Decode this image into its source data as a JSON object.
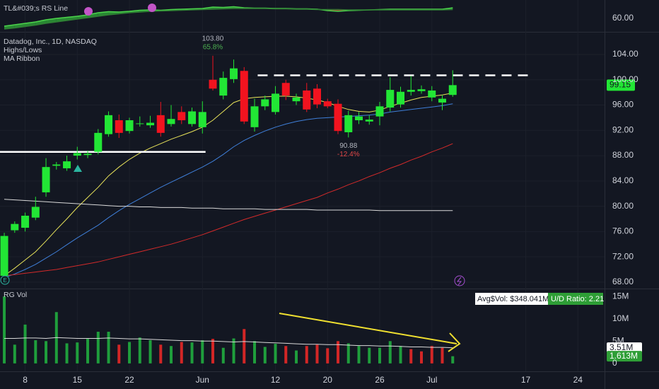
{
  "chart_data": [
    {
      "type": "area",
      "title": "TL&#039;s RS Line",
      "series": [
        {
          "color": "#4cd44c",
          "values": [
            57.8,
            58.2,
            58.6,
            59.0,
            59.6,
            60.0,
            60.3,
            60.6,
            61.0,
            61.6,
            61.9,
            61.8,
            62.0,
            62.3,
            62.4,
            62.3,
            62.5,
            62.6,
            62.7,
            62.8,
            63.2,
            63.1,
            63.3,
            63.0,
            62.9,
            62.9,
            62.8,
            62.8,
            62.7,
            62.7,
            62.6,
            62.2,
            62.0,
            62.2,
            62.3,
            62.4,
            62.5,
            62.6,
            62.6,
            62.6,
            62.6,
            62.6,
            62.6,
            63.0
          ]
        },
        {
          "color": "#2f7d34",
          "values": [
            57.0,
            57.3,
            57.7,
            58.1,
            58.6,
            59.0,
            59.4,
            59.8,
            60.2,
            60.6,
            61.0,
            61.3,
            61.6,
            61.8,
            62.0,
            62.1,
            62.2,
            62.3,
            62.4,
            62.5,
            62.6,
            62.7,
            62.8,
            62.8,
            62.8,
            62.8,
            62.7,
            62.7,
            62.6,
            62.6,
            62.5,
            62.5,
            62.5,
            62.4,
            62.4,
            62.4,
            62.4,
            62.4,
            62.4,
            62.4,
            62.4,
            62.4,
            62.4,
            62.5
          ]
        }
      ],
      "fill_up_color": "#2e9e36",
      "fill_down_color": "#d42a2a",
      "ylim": [
        56.2,
        65.2
      ],
      "yticks": [
        {
          "value": 60,
          "label": "60.00"
        }
      ]
    },
    {
      "type": "candlestick",
      "title": "Datadog, Inc., 1D, NASDAQ",
      "indicators": [
        "Highs/Lows",
        "MA Ribbon"
      ],
      "open": [
        69.0,
        76.2,
        76.6,
        78.2,
        82.2,
        86.4,
        86.0,
        88.0,
        88.1,
        88.6,
        91.4,
        93.6,
        91.9,
        93.0,
        92.8,
        94.4,
        93.0,
        94.9,
        93.0,
        92.5,
        100.0,
        97.5,
        100.1,
        101.4,
        92.5,
        95.8,
        94.9,
        99.5,
        96.6,
        98.3,
        98.6,
        96.6,
        96.2,
        91.7,
        93.6,
        93.4,
        94.2,
        95.6,
        96.1,
        98.1,
        98.2,
        97.2,
        96.4,
        97.6
      ],
      "high": [
        75.8,
        77.6,
        79.0,
        81.5,
        87.6,
        87.0,
        88.0,
        89.4,
        88.8,
        92.2,
        95.0,
        94.5,
        94.0,
        94.2,
        94.3,
        96.5,
        96.0,
        95.8,
        95.6,
        96.6,
        103.8,
        101.3,
        103.2,
        102.0,
        97.0,
        97.5,
        99.0,
        100.0,
        97.8,
        99.5,
        99.3,
        97.0,
        96.9,
        95.1,
        94.9,
        94.4,
        96.5,
        100.4,
        98.9,
        100.6,
        99.1,
        99.0,
        97.6,
        101.5
      ],
      "low": [
        68.6,
        75.8,
        76.0,
        77.8,
        81.5,
        85.8,
        85.6,
        87.4,
        87.6,
        88.2,
        91.0,
        90.8,
        91.5,
        92.6,
        92.4,
        91.0,
        92.6,
        93.0,
        92.6,
        91.5,
        98.3,
        96.9,
        99.5,
        93.0,
        91.8,
        95.2,
        94.5,
        96.8,
        96.0,
        94.9,
        95.5,
        95.5,
        91.4,
        90.88,
        93.0,
        92.9,
        92.8,
        95.0,
        95.6,
        97.5,
        97.8,
        96.6,
        95.2,
        97.3
      ],
      "close": [
        75.3,
        77.2,
        78.5,
        79.9,
        86.2,
        86.6,
        87.1,
        88.4,
        88.3,
        91.6,
        94.4,
        91.6,
        93.6,
        93.1,
        93.2,
        91.6,
        93.8,
        93.6,
        95.0,
        94.9,
        98.6,
        100.3,
        101.8,
        93.4,
        95.8,
        96.9,
        97.8,
        97.5,
        97.2,
        95.3,
        96.1,
        95.8,
        91.9,
        94.4,
        94.2,
        93.7,
        95.8,
        98.4,
        98.1,
        98.4,
        98.5,
        98.3,
        97.0,
        99.15
      ],
      "up_color": "#22e635",
      "down_color": "#f2131f",
      "ma_ribbon": [
        {
          "color": "#e8e35a",
          "values": [
            69.0,
            70.2,
            71.5,
            72.8,
            74.5,
            76.3,
            78.0,
            79.8,
            81.4,
            83.0,
            84.8,
            86.2,
            87.4,
            88.4,
            89.2,
            89.9,
            90.6,
            91.2,
            91.8,
            92.5,
            93.6,
            95.0,
            96.4,
            97.0,
            97.2,
            97.3,
            97.4,
            97.4,
            97.3,
            97.1,
            96.8,
            96.4,
            95.8,
            95.3,
            95.0,
            94.9,
            95.2,
            95.8,
            96.3,
            96.8,
            97.2,
            97.4,
            97.6,
            97.9
          ]
        },
        {
          "color": "#3f7fd9",
          "values": [
            68.7,
            69.3,
            70.0,
            70.8,
            71.8,
            72.8,
            73.9,
            75.0,
            76.0,
            77.0,
            78.2,
            79.3,
            80.3,
            81.2,
            82.1,
            83.0,
            83.8,
            84.6,
            85.4,
            86.2,
            87.1,
            88.2,
            89.4,
            90.4,
            91.2,
            91.9,
            92.5,
            93.0,
            93.4,
            93.7,
            93.9,
            94.0,
            94.1,
            94.2,
            94.3,
            94.4,
            94.6,
            94.9,
            95.1,
            95.3,
            95.5,
            95.7,
            95.9,
            96.2
          ]
        },
        {
          "color": "#d32a2a",
          "values": [
            69.0,
            69.2,
            69.4,
            69.6,
            69.8,
            70.0,
            70.3,
            70.6,
            70.9,
            71.2,
            71.6,
            72.0,
            72.4,
            72.8,
            73.2,
            73.6,
            74.0,
            74.5,
            75.0,
            75.5,
            76.1,
            76.7,
            77.3,
            77.9,
            78.4,
            78.9,
            79.4,
            79.9,
            80.4,
            80.9,
            81.4,
            82.1,
            82.7,
            83.4,
            84.0,
            84.7,
            85.3,
            86.0,
            86.6,
            87.3,
            87.9,
            88.6,
            89.2,
            89.9
          ]
        },
        {
          "color": "#d9d9d9",
          "values": [
            81.1,
            81.0,
            80.9,
            80.8,
            80.7,
            80.6,
            80.5,
            80.4,
            80.3,
            80.2,
            80.1,
            80.0,
            80.0,
            79.9,
            79.9,
            79.8,
            79.8,
            79.8,
            79.7,
            79.7,
            79.7,
            79.6,
            79.6,
            79.6,
            79.6,
            79.5,
            79.5,
            79.5,
            79.5,
            79.5,
            79.4,
            79.4,
            79.4,
            79.4,
            79.4,
            79.4,
            79.3,
            79.3,
            79.3,
            79.3,
            79.3,
            79.3,
            79.3,
            79.3
          ]
        }
      ],
      "annotations": [
        {
          "at": "high",
          "value": 103.8,
          "label": "103.80",
          "change": {
            "value": 65.8,
            "label": "65.8%"
          },
          "color": "#4caf50"
        },
        {
          "at": "low",
          "value": 90.88,
          "label": "90.88",
          "change": {
            "value": -12.4,
            "label": "-12.4%"
          },
          "color": "#e04848"
        }
      ],
      "levels": [
        {
          "value": 100.7,
          "from": 24.3,
          "to": 50.8,
          "style": "dashed",
          "color": "#ffffff"
        },
        {
          "value": 88.6,
          "from": -0.41,
          "to": 19.3,
          "style": "solid",
          "color": "#ffffff"
        }
      ],
      "last_price": 99.15,
      "last_price_color": "#22e635",
      "ylim": [
        66.98,
        107.58
      ],
      "yticks": [
        {
          "value": 104,
          "label": "104.00"
        },
        {
          "value": 100,
          "label": "100.00"
        },
        {
          "value": 96,
          "label": "96.00"
        },
        {
          "value": 92,
          "label": "92.00"
        },
        {
          "value": 88,
          "label": "88.00"
        },
        {
          "value": 84,
          "label": "84.00"
        },
        {
          "value": 80,
          "label": "80.00"
        },
        {
          "value": 76,
          "label": "76.00"
        },
        {
          "value": 72,
          "label": "72.00"
        },
        {
          "value": 68,
          "label": "68.00"
        }
      ],
      "grid": true
    },
    {
      "type": "bar",
      "title": "RG Vol",
      "x": [
        0,
        1,
        2,
        3,
        4,
        5,
        6,
        7,
        8,
        9,
        10,
        11,
        12,
        13,
        14,
        15,
        16,
        17,
        18,
        19,
        20,
        21,
        22,
        23,
        24,
        25,
        26,
        27,
        28,
        29,
        30,
        31,
        32,
        33,
        34,
        35,
        36,
        37,
        38,
        39,
        40,
        41,
        42,
        43
      ],
      "xlim": [
        -0.41,
        57.56
      ],
      "xticks": [
        {
          "value": 2,
          "label": "8"
        },
        {
          "value": 7,
          "label": "15"
        },
        {
          "value": 12,
          "label": "22"
        },
        {
          "value": 19,
          "label": "Jun"
        },
        {
          "value": 26,
          "label": "12"
        },
        {
          "value": 31,
          "label": "20"
        },
        {
          "value": 36,
          "label": "26"
        },
        {
          "value": 41,
          "label": "Jul"
        },
        {
          "value": 50,
          "label": "17"
        },
        {
          "value": 55,
          "label": "24"
        }
      ],
      "values": [
        15.0,
        4.2,
        8.7,
        5.2,
        5.0,
        11.5,
        4.5,
        4.7,
        5.5,
        7.1,
        7.1,
        4.2,
        4.8,
        5.8,
        5.2,
        4.2,
        3.9,
        4.8,
        4.7,
        5.2,
        5.5,
        3.5,
        5.6,
        7.7,
        5.0,
        3.7,
        4.4,
        3.9,
        2.9,
        3.9,
        4.2,
        3.4,
        5.0,
        4.5,
        3.9,
        3.5,
        3.5,
        5.0,
        3.9,
        3.2,
        2.7,
        3.9,
        3.5,
        1.613
      ],
      "colors": [
        "#1f9e3c",
        "#1f9e3c",
        "#1f9e3c",
        "#1f9e3c",
        "#1f9e3c",
        "#1f9e3c",
        "#1f9e3c",
        "#1f9e3c",
        "#1f9e3c",
        "#1f9e3c",
        "#1f9e3c",
        "#d32626",
        "#1f9e3c",
        "#1f9e3c",
        "#1f9e3c",
        "#d32626",
        "#1f9e3c",
        "#d32626",
        "#1f9e3c",
        "#1f9e3c",
        "#d32626",
        "#1f9e3c",
        "#1f9e3c",
        "#d32626",
        "#1f9e3c",
        "#1f9e3c",
        "#1f9e3c",
        "#d32626",
        "#1f9e3c",
        "#d32626",
        "#d32626",
        "#d32626",
        "#d32626",
        "#1f9e3c",
        "#1f9e3c",
        "#1f9e3c",
        "#1f9e3c",
        "#1f9e3c",
        "#1f9e3c",
        "#d32626",
        "#d32626",
        "#d32626",
        "#d32626",
        "#1f9e3c"
      ],
      "last_label": {
        "value": 1.613,
        "label": "1.613M"
      },
      "ma": {
        "color": "#d9d9d9",
        "values": [
          5.6,
          5.6,
          5.7,
          5.7,
          5.6,
          5.8,
          5.7,
          5.6,
          5.6,
          5.6,
          5.7,
          5.6,
          5.5,
          5.5,
          5.4,
          5.3,
          5.2,
          5.1,
          5.1,
          5.0,
          5.0,
          4.9,
          4.8,
          4.9,
          4.8,
          4.7,
          4.6,
          4.5,
          4.4,
          4.3,
          4.3,
          4.2,
          4.2,
          4.1,
          4.0,
          4.0,
          3.9,
          3.9,
          3.8,
          3.7,
          3.7,
          3.6,
          3.6,
          3.51
        ],
        "last_label": {
          "value": 3.51,
          "label": "3.51M"
        }
      },
      "stats": [
        "Avg$Vol: $348.041M",
        "U/D Ratio: 2.21"
      ],
      "ylim": [
        -1.77,
        16.77
      ],
      "yticks": [
        {
          "value": 15,
          "label": "15M"
        },
        {
          "value": 10,
          "label": "10M"
        },
        {
          "value": 5,
          "label": "5M"
        },
        0
      ]
    }
  ]
}
